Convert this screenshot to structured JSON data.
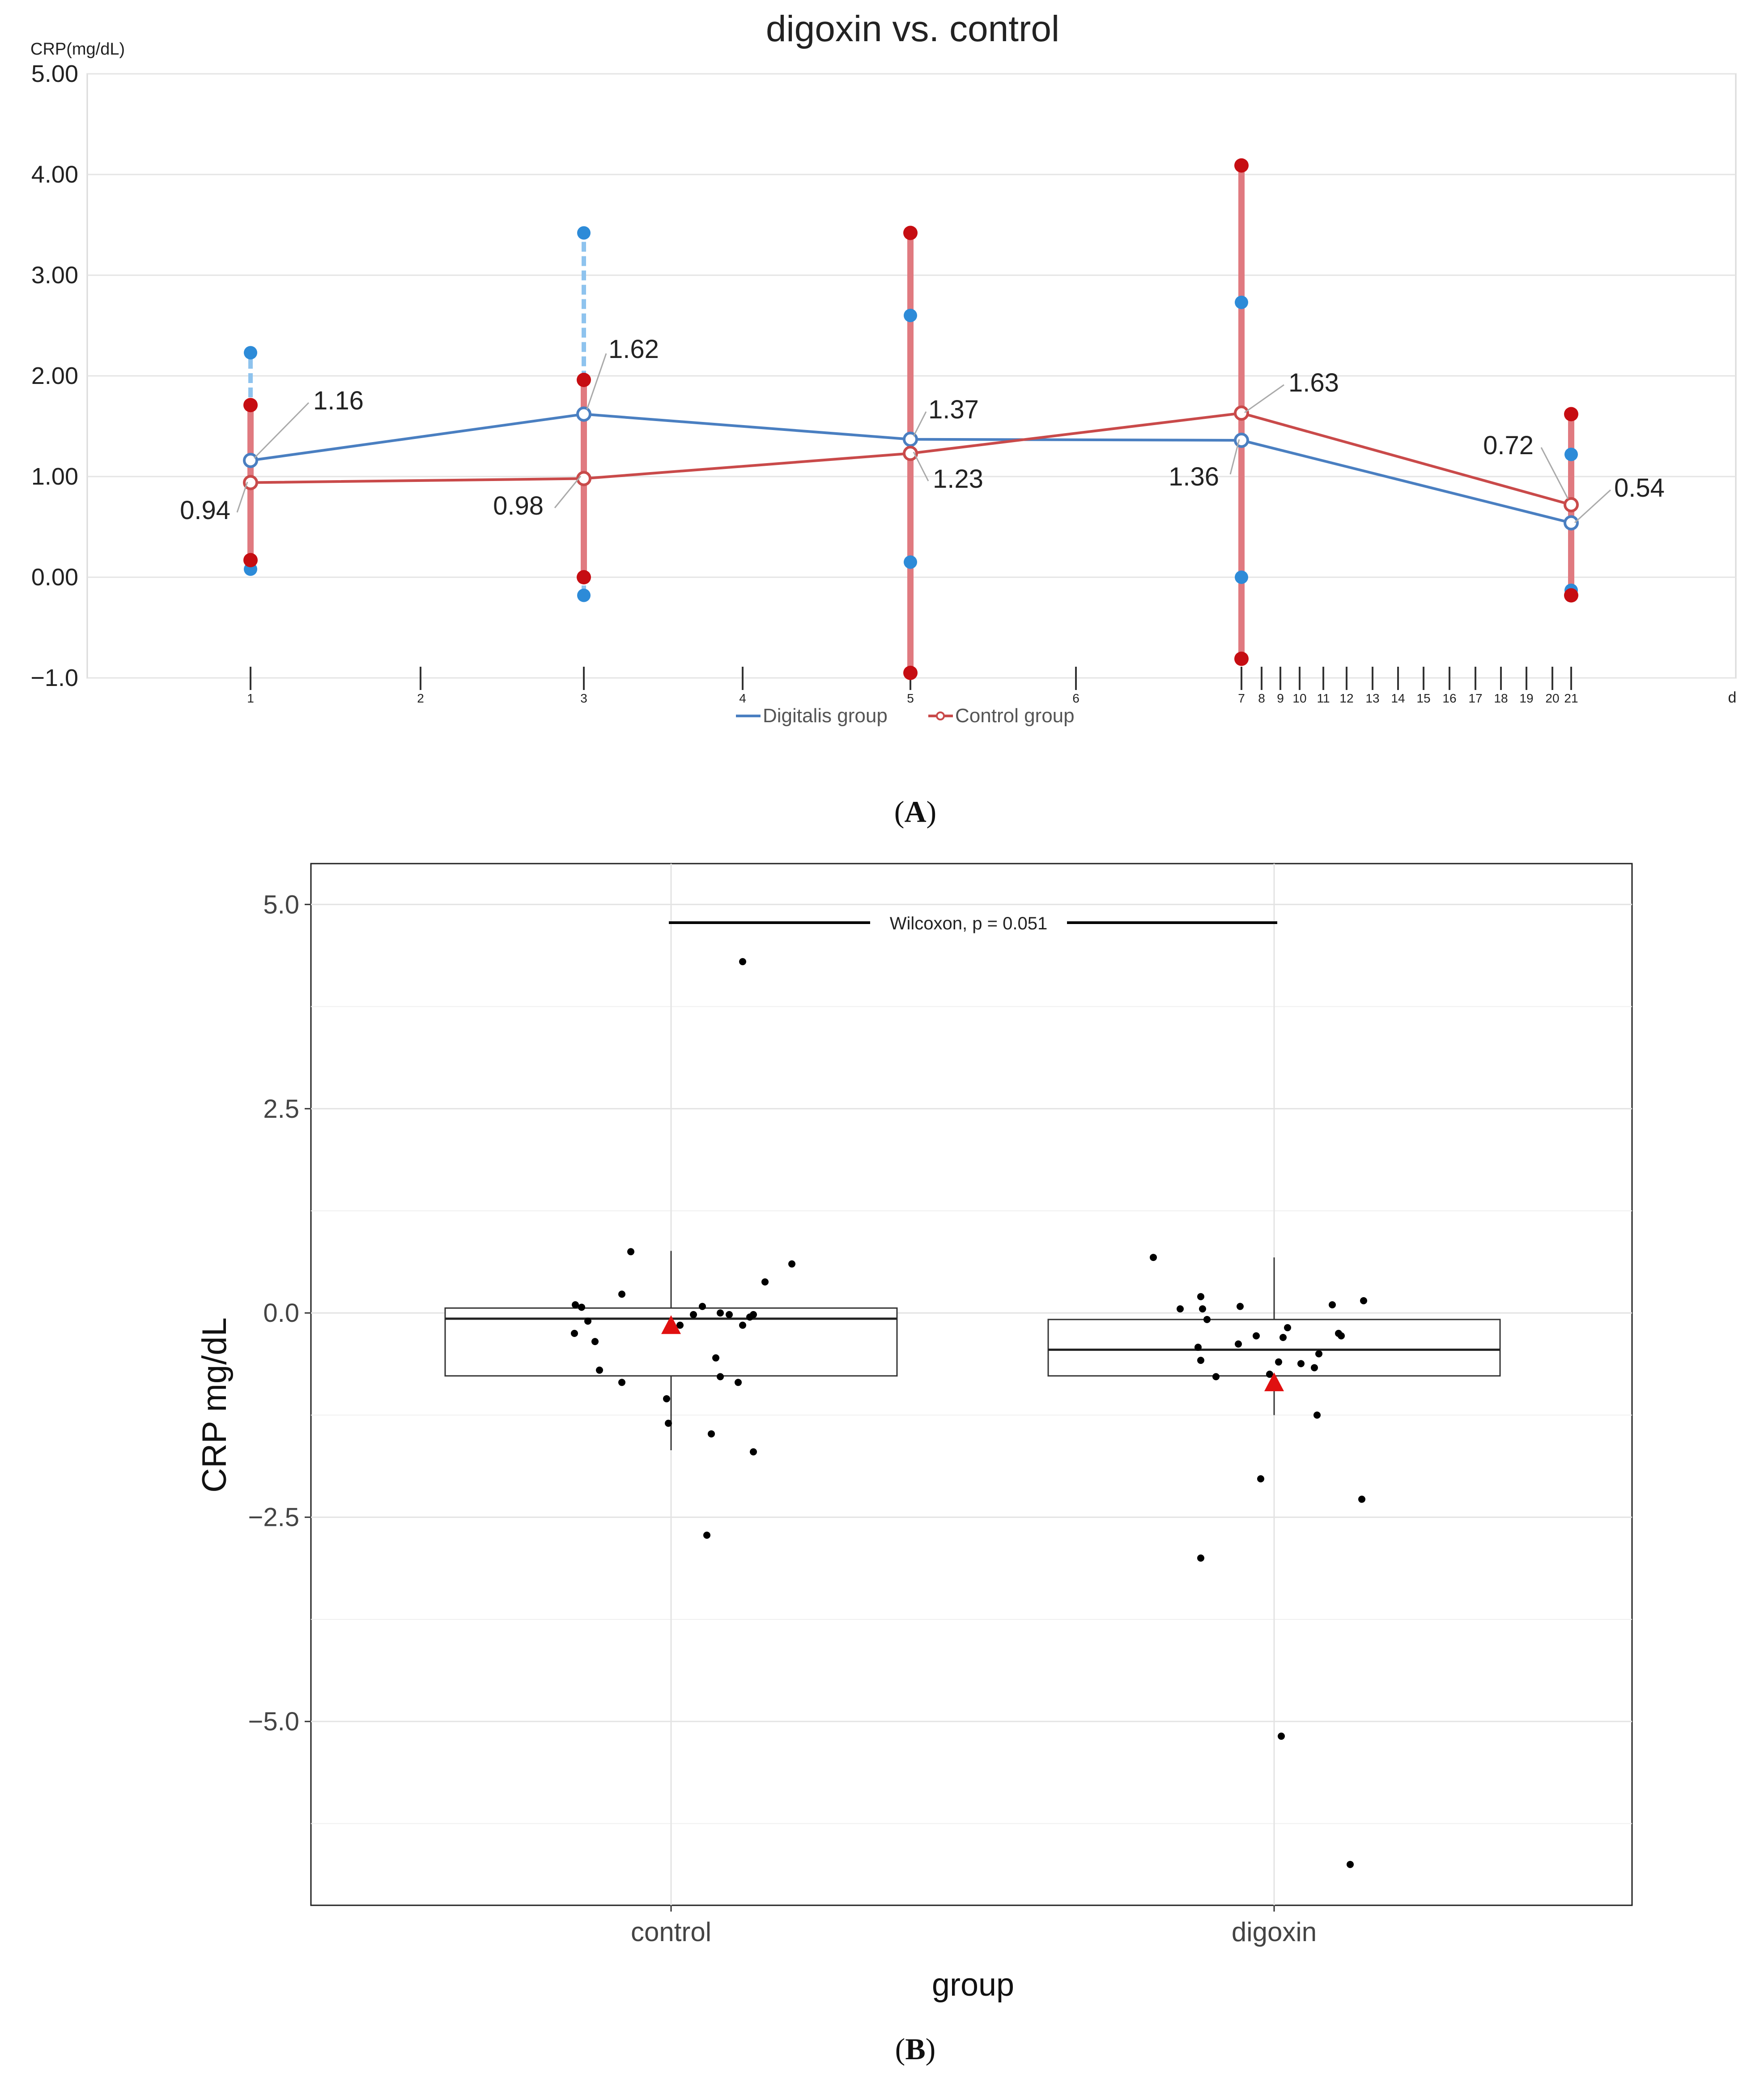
{
  "chart_data": [
    {
      "panel": "A",
      "type": "line",
      "title": "digoxin vs. control",
      "ylabel": "CRP(mg/dL)",
      "xlabel": "d",
      "ylim": [
        -1.0,
        5.0
      ],
      "yticks": [
        {
          "value": -1.0,
          "label": "−1.0"
        },
        {
          "value": 0.0,
          "label": "0.00"
        },
        {
          "value": 1.0,
          "label": "1.00"
        },
        {
          "value": 2.0,
          "label": "2.00"
        },
        {
          "value": 3.0,
          "label": "3.00"
        },
        {
          "value": 4.0,
          "label": "4.00"
        },
        {
          "value": 5.0,
          "label": "5.00"
        }
      ],
      "xticks": [
        "1",
        "2",
        "3",
        "4",
        "5",
        "6",
        "7",
        "8",
        "9",
        "10",
        "11",
        "12",
        "13",
        "14",
        "15",
        "16",
        "17",
        "18",
        "19",
        "20",
        "21"
      ],
      "grid": true,
      "legend": "bottom",
      "series": [
        {
          "name": "Digitalis group",
          "color": "#4a7fc1",
          "whisker_color": "#8ec3ee",
          "dot_color": "#2d8bd8",
          "x": [
            "1",
            "3",
            "5",
            "7",
            "21"
          ],
          "values": [
            1.16,
            1.62,
            1.37,
            1.36,
            0.54
          ],
          "labels": [
            "1.16",
            "1.62",
            "1.37",
            "1.36",
            "0.54"
          ],
          "min": [
            0.08,
            -0.18,
            0.15,
            0.0,
            -0.13
          ],
          "max": [
            2.23,
            3.42,
            2.6,
            2.73,
            1.22
          ]
        },
        {
          "name": "Control group",
          "color": "#c94a4a",
          "whisker_color": "#e07a80",
          "dot_color": "#c60d12",
          "x": [
            "1",
            "3",
            "5",
            "7",
            "21"
          ],
          "values": [
            0.94,
            0.98,
            1.23,
            1.63,
            0.72
          ],
          "labels": [
            "0.94",
            "0.98",
            "1.23",
            "1.63",
            "0.72"
          ],
          "min": [
            0.17,
            0.0,
            -0.95,
            -0.81,
            -0.18
          ],
          "max": [
            1.71,
            1.96,
            3.42,
            4.09,
            1.62
          ]
        }
      ]
    },
    {
      "panel": "B",
      "type": "box",
      "title": "",
      "xlabel": "group",
      "ylabel": "CRP mg/dL",
      "ylim": [
        -7.25,
        5.5
      ],
      "yticks": [
        {
          "value": 5.0,
          "label": "5.0"
        },
        {
          "value": 2.5,
          "label": "2.5"
        },
        {
          "value": 0.0,
          "label": "0.0"
        },
        {
          "value": -2.5,
          "label": "−2.5"
        },
        {
          "value": -5.0,
          "label": "−5.0"
        }
      ],
      "categories": [
        "control",
        "digoxin"
      ],
      "annotation": "Wilcoxon, p = 0.051",
      "grid": true,
      "boxes": [
        {
          "group": "control",
          "q1": -0.77,
          "median": -0.07,
          "q3": 0.06,
          "whisker_low": -1.68,
          "whisker_high": 0.76,
          "mean": -0.17
        },
        {
          "group": "digoxin",
          "q1": -0.77,
          "median": -0.45,
          "q3": -0.08,
          "whisker_low": -1.25,
          "whisker_high": 0.68,
          "mean": -0.87
        }
      ],
      "points": {
        "control": [
          [
            -0.45,
            0.75
          ],
          [
            -1.07,
            0.1
          ],
          [
            -1.0,
            0.07
          ],
          [
            -0.93,
            -0.1
          ],
          [
            -1.08,
            -0.25
          ],
          [
            -0.55,
            0.23
          ],
          [
            -0.85,
            -0.35
          ],
          [
            -0.8,
            -0.7
          ],
          [
            -0.55,
            -0.85
          ],
          [
            -0.05,
            -1.05
          ],
          [
            -0.03,
            -1.35
          ],
          [
            0.25,
            -0.02
          ],
          [
            0.35,
            0.08
          ],
          [
            0.55,
            0.0
          ],
          [
            0.65,
            -0.02
          ],
          [
            0.8,
            -0.15
          ],
          [
            0.88,
            -0.05
          ],
          [
            0.92,
            -0.02
          ],
          [
            1.05,
            0.38
          ],
          [
            1.35,
            0.6
          ],
          [
            0.5,
            -0.55
          ],
          [
            0.55,
            -0.78
          ],
          [
            0.75,
            -0.85
          ],
          [
            0.45,
            -1.48
          ],
          [
            0.92,
            -1.7
          ],
          [
            0.4,
            -2.72
          ],
          [
            0.8,
            4.3
          ],
          [
            0.1,
            -0.15
          ]
        ],
        "digoxin": [
          [
            -1.35,
            0.68
          ],
          [
            -1.05,
            0.05
          ],
          [
            -0.82,
            0.2
          ],
          [
            -0.8,
            0.05
          ],
          [
            -0.75,
            -0.08
          ],
          [
            -0.38,
            0.08
          ],
          [
            -0.85,
            -0.42
          ],
          [
            -0.82,
            -0.58
          ],
          [
            -0.65,
            -0.78
          ],
          [
            -0.4,
            -0.38
          ],
          [
            -0.2,
            -0.28
          ],
          [
            -0.05,
            -0.75
          ],
          [
            0.05,
            -0.6
          ],
          [
            0.15,
            -0.18
          ],
          [
            0.1,
            -0.3
          ],
          [
            0.3,
            -0.62
          ],
          [
            0.45,
            -0.67
          ],
          [
            0.5,
            -0.5
          ],
          [
            0.72,
            -0.25
          ],
          [
            0.75,
            -0.28
          ],
          [
            0.65,
            0.1
          ],
          [
            1.0,
            0.15
          ],
          [
            0.48,
            -1.25
          ],
          [
            0.98,
            -2.28
          ],
          [
            -0.15,
            -2.03
          ],
          [
            -0.82,
            -3.0
          ],
          [
            0.08,
            -5.18
          ],
          [
            0.85,
            -6.75
          ]
        ]
      }
    }
  ],
  "labels": {
    "panel_a": "A",
    "panel_b": "B"
  }
}
